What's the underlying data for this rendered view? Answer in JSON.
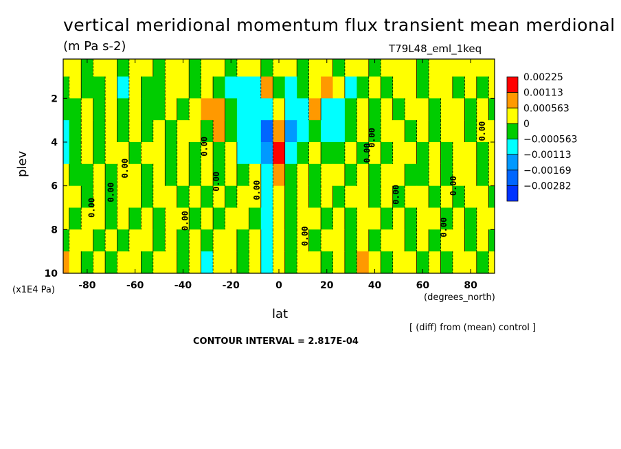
{
  "chart_data": {
    "type": "heatmap",
    "title": "vertical meridional momentum flux transient mean merdional",
    "subtitle": "(m Pa s-2)",
    "dataset": "T79L48_eml_1keq",
    "xlabel": "lat",
    "ylabel": "plev",
    "x_unit": "(degrees_north)",
    "y_unit": "(x1E4 Pa)",
    "x_ticks": [
      "-80",
      "-60",
      "-40",
      "-20",
      "0",
      "20",
      "40",
      "60",
      "80"
    ],
    "x_tick_values": [
      -80,
      -60,
      -40,
      -20,
      0,
      20,
      40,
      60,
      80
    ],
    "y_ticks": [
      "2",
      "4",
      "6",
      "8",
      "10"
    ],
    "y_tick_values": [
      2,
      4,
      6,
      8,
      10
    ],
    "xlim": [
      -90,
      90
    ],
    "ylim": [
      10,
      0.2
    ],
    "note": "[ (diff) from (mean) control ]",
    "contour_interval": "CONTOUR INTERVAL = 2.817E-04",
    "contour_label": "0.00",
    "legend": [
      {
        "label": "0.00225",
        "color": "#ff0000"
      },
      {
        "label": "0.00113",
        "color": "#ff9900"
      },
      {
        "label": "0.000563",
        "color": "#ffff00"
      },
      {
        "label": "0",
        "color": "#00cc00"
      },
      {
        "label": "−0.000563",
        "color": "#00ffff"
      },
      {
        "label": "−0.00113",
        "color": "#0099ff"
      },
      {
        "label": "−0.00169",
        "color": "#0066ff"
      },
      {
        "label": "−0.00282",
        "color": "#0033ff"
      }
    ],
    "field": {
      "lat": [
        -90,
        -85,
        -80,
        -75,
        -70,
        -65,
        -60,
        -55,
        -50,
        -45,
        -40,
        -35,
        -30,
        -25,
        -20,
        -15,
        -10,
        -5,
        0,
        5,
        10,
        15,
        20,
        25,
        30,
        35,
        40,
        45,
        50,
        55,
        60,
        65,
        70,
        75,
        80,
        85,
        90
      ],
      "plev": [
        0.5,
        1.5,
        2.5,
        3.5,
        4.5,
        5.5,
        6.5,
        7.5,
        8.5,
        9.5
      ],
      "values": [
        [
          0.0002,
          0.0002,
          -0.0001,
          0.0002,
          0.0003,
          -0.0002,
          0.0001,
          0.0002,
          -0.0001,
          0.0002,
          0.0003,
          -0.0001,
          0.0002,
          0.0001,
          -0.0002,
          0.0002,
          0.0001,
          -0.0001,
          0.0002,
          0.0001,
          -0.0002,
          0.0002,
          0.0003,
          -0.0001,
          0.0002,
          0.0002,
          -0.0001,
          0.0002,
          0.0001,
          0.0002,
          -0.0001,
          0.0002,
          0.0003,
          0.0001,
          0.0002,
          0.0002,
          0.0002
        ],
        [
          -0.0001,
          0.0001,
          -0.0002,
          -0.0001,
          0.0002,
          -0.0003,
          0.0002,
          -0.0001,
          -0.0002,
          0.0003,
          0.0002,
          -0.0002,
          0.0003,
          -0.0001,
          -0.0003,
          -0.0008,
          -0.0004,
          0.0007,
          -0.0002,
          -0.0006,
          -0.0002,
          0.0003,
          0.0008,
          0.0002,
          -0.0003,
          -0.0001,
          0.0002,
          -0.0002,
          0.0003,
          0.0002,
          -0.0002,
          0.0001,
          0.0002,
          -0.0001,
          0.0002,
          -0.0002,
          0.0001
        ],
        [
          -0.0002,
          -0.0001,
          0.0002,
          -0.0002,
          0.0001,
          -0.0002,
          0.0003,
          -0.0002,
          -0.0001,
          0.0002,
          -0.0002,
          0.0003,
          0.0004,
          0.0007,
          -0.0002,
          -0.0003,
          -0.0006,
          -0.0003,
          0.0002,
          -0.0007,
          -0.0003,
          0.0004,
          -0.0006,
          -0.0008,
          -0.0002,
          0.0002,
          -0.0001,
          0.0002,
          -0.0002,
          0.0002,
          0.0003,
          -0.0002,
          0.0002,
          0.0002,
          -0.0001,
          0.0002,
          -0.0002
        ],
        [
          -0.0007,
          -0.0002,
          0.0001,
          -0.0002,
          0.0002,
          -0.0001,
          0.0002,
          -0.0002,
          0.0003,
          -0.0002,
          0.0002,
          0.0002,
          -0.0001,
          0.0006,
          -0.0002,
          -0.0004,
          -0.0008,
          -0.0015,
          0.0022,
          -0.0009,
          -0.0004,
          -0.0002,
          -0.0003,
          -0.0006,
          -0.0002,
          0.0002,
          -0.0002,
          0.0003,
          0.0002,
          -0.0002,
          0.0002,
          -0.0001,
          0.0002,
          0.0002,
          -0.0002,
          0.0003,
          0.0002
        ],
        [
          -0.0003,
          -0.0001,
          0.0002,
          -0.0002,
          0.0002,
          0.0001,
          -0.0002,
          0.0003,
          0.0002,
          -0.0001,
          0.0002,
          -0.0002,
          0.0003,
          -0.0001,
          0.0002,
          -0.0003,
          -0.0005,
          -0.0012,
          0.0025,
          -0.0004,
          -0.0002,
          0.0002,
          -0.0002,
          -0.0001,
          0.0002,
          -0.0002,
          0.0002,
          -0.0001,
          0.0002,
          0.0003,
          -0.0002,
          0.0002,
          -0.0002,
          0.0002,
          0.0001,
          -0.0002,
          0.0002
        ],
        [
          0.0002,
          -0.0002,
          -0.0001,
          0.0002,
          -0.0002,
          0.0002,
          0.0003,
          -0.0002,
          0.0002,
          -0.0001,
          0.0002,
          -0.0002,
          0.0002,
          -0.0002,
          0.0003,
          -0.0001,
          0.0002,
          -0.0004,
          0.0004,
          -0.0002,
          0.0002,
          -0.0001,
          0.0002,
          0.0002,
          -0.0002,
          0.0002,
          -0.0001,
          0.0003,
          0.0002,
          -0.0001,
          -0.0002,
          0.0002,
          -0.0002,
          0.0002,
          0.0002,
          -0.0002,
          0.0002
        ],
        [
          0.0002,
          0.0001,
          -0.0002,
          0.0002,
          -0.0001,
          0.0002,
          0.0002,
          -0.0002,
          0.0002,
          0.0003,
          -0.0002,
          0.0002,
          -0.0001,
          0.0002,
          -0.0002,
          0.0002,
          0.0002,
          -0.0006,
          0.0002,
          -0.0002,
          0.0002,
          -0.0001,
          0.0002,
          -0.0002,
          0.0002,
          0.0002,
          -0.0001,
          0.0002,
          -0.0002,
          0.0002,
          0.0003,
          -0.0002,
          0.0002,
          -0.0001,
          0.0002,
          0.0002,
          -0.0002
        ],
        [
          0.0002,
          -0.0002,
          0.0002,
          0.0002,
          -0.0002,
          0.0002,
          -0.0001,
          0.0002,
          -0.0002,
          0.0002,
          0.0002,
          -0.0002,
          0.0002,
          -0.0002,
          0.0002,
          0.0002,
          -0.0002,
          -0.0008,
          0.0003,
          -0.0002,
          0.0002,
          0.0002,
          -0.0002,
          0.0002,
          -0.0001,
          0.0002,
          0.0002,
          -0.0002,
          0.0002,
          -0.0002,
          0.0002,
          0.0002,
          -0.0001,
          0.0002,
          -0.0002,
          0.0002,
          0.0002
        ],
        [
          -0.0002,
          0.0002,
          0.0002,
          -0.0001,
          0.0002,
          -0.0002,
          0.0002,
          0.0002,
          -0.0002,
          0.0003,
          -0.0002,
          0.0002,
          -0.0002,
          0.0002,
          0.0002,
          -0.0002,
          0.0002,
          -0.0007,
          0.0002,
          -0.0002,
          0.0002,
          -0.0002,
          0.0002,
          0.0002,
          -0.0002,
          0.0002,
          -0.0001,
          0.0002,
          0.0002,
          -0.0002,
          0.0002,
          -0.0002,
          0.0002,
          0.0002,
          -0.0002,
          0.0002,
          -0.0001
        ],
        [
          0.0007,
          0.0002,
          -0.0002,
          0.0002,
          -0.0002,
          0.0002,
          0.0002,
          -0.0002,
          0.0002,
          0.0002,
          -0.0002,
          0.0002,
          -0.0003,
          0.0002,
          0.0002,
          -0.0002,
          0.0002,
          -0.0006,
          0.0002,
          -0.0002,
          0.0002,
          0.0002,
          -0.0002,
          0.0002,
          -0.0002,
          0.0005,
          0.0002,
          -0.0002,
          0.0002,
          0.0002,
          -0.0002,
          0.0002,
          -0.0002,
          0.0002,
          0.0002,
          -0.0002,
          0.0002
        ]
      ]
    }
  }
}
